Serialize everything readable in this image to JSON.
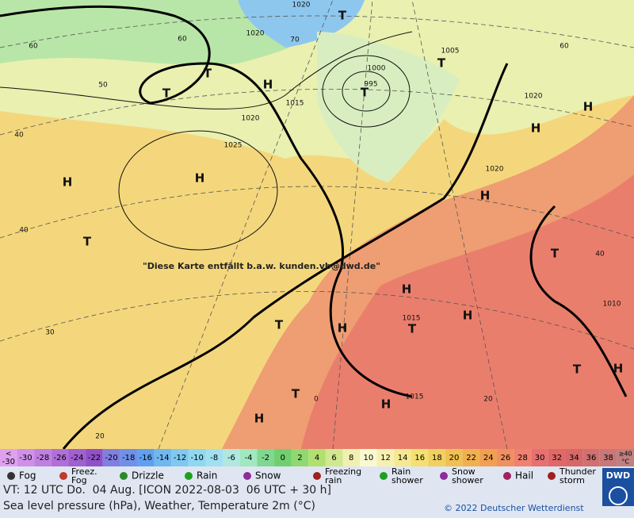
{
  "map": {
    "notice": "\"Diese Karte entfällt b.a.w. kunden.vb@dwd.de\"",
    "labels": [
      "H",
      "H",
      "H",
      "H",
      "H",
      "H",
      "H",
      "H",
      "H",
      "H",
      "H",
      "H",
      "T",
      "T",
      "T",
      "T",
      "T",
      "T",
      "T",
      "T",
      "T",
      "T",
      "T",
      "1020",
      "1020",
      "1005",
      "1000",
      "995",
      "1015",
      "1020",
      "1025",
      "1020",
      "1020",
      "1015",
      "1015",
      "1010",
      "60",
      "70",
      "60",
      "50",
      "40",
      "40",
      "30",
      "20",
      "20",
      "60",
      "40",
      "0"
    ]
  },
  "scale": {
    "lt": "<",
    "values": [
      -30,
      -30,
      -28,
      -26,
      -24,
      -22,
      -20,
      -18,
      -16,
      -14,
      -12,
      -10,
      -8,
      -6,
      -4,
      -2,
      0,
      2,
      4,
      6,
      8,
      10,
      12,
      14,
      16,
      18,
      20,
      22,
      24,
      26,
      28,
      30,
      32,
      34,
      36,
      38
    ],
    "ge": "≥40",
    "unit": "°C"
  },
  "legend": [
    "Fog",
    "Freez. Fog",
    "Drizzle",
    "Rain",
    "Snow",
    "Freezing rain",
    "Rain shower",
    "Snow shower",
    "Hail",
    "Thunder storm"
  ],
  "logo": "DWD",
  "footer": {
    "valid": "VT: 12 UTC Do.  04 Aug. [ICON 2022-08-03  06 UTC + 30 h]",
    "desc": "Sea level pressure (hPa), Weather, Temperature 2m (°C)",
    "copyright": "© 2022 Deutscher Wetterdienst"
  }
}
